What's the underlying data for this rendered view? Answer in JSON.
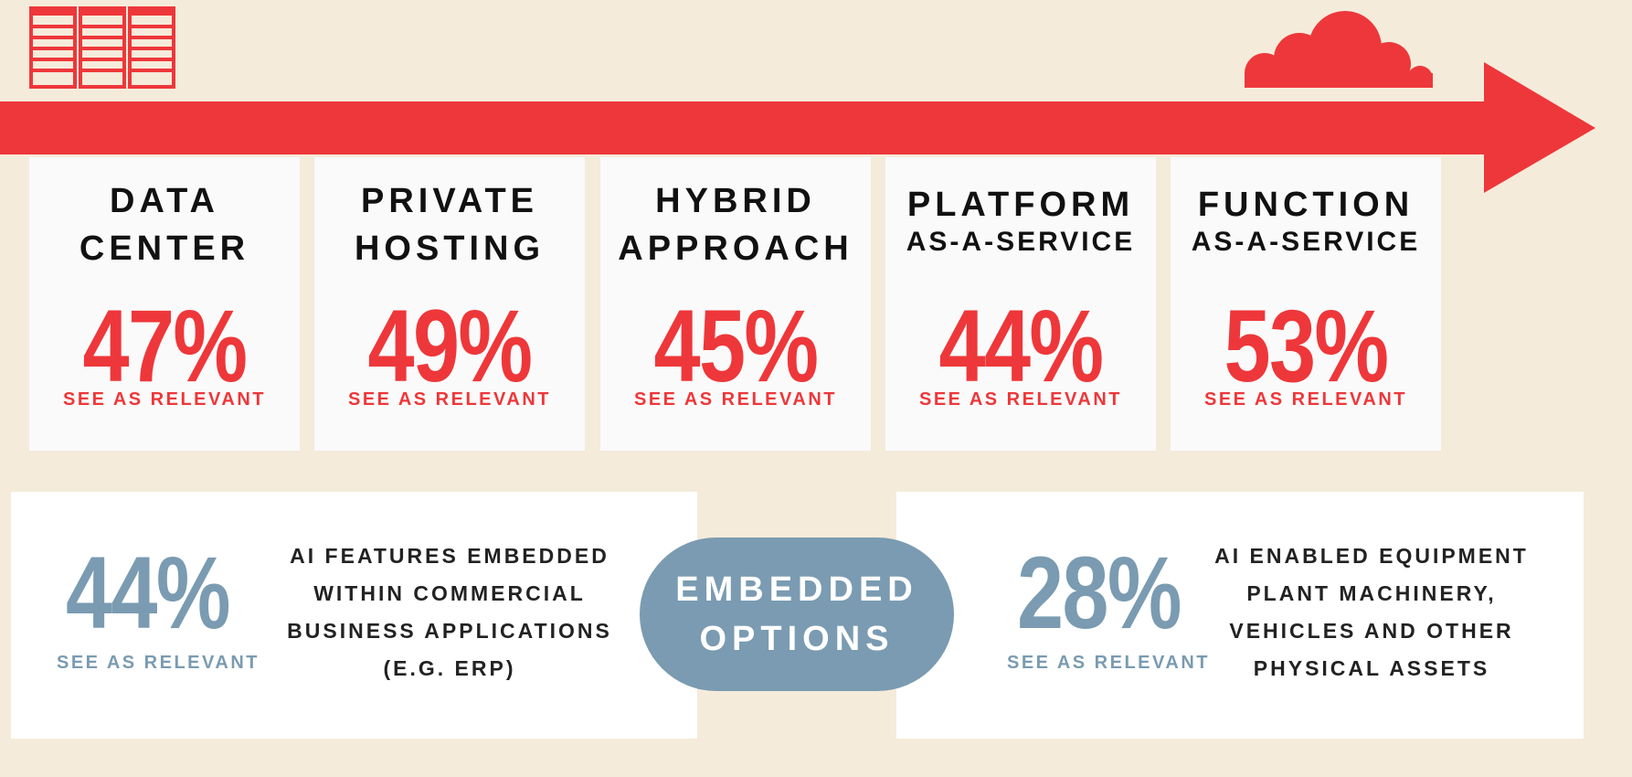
{
  "colors": {
    "background": "#f5ebdb",
    "accent_red": "#ee373a",
    "accent_blue": "#7a9bb1",
    "card_bg": "#fafafa",
    "panel_bg": "#ffffff"
  },
  "icons": {
    "left": "server-rack-icon",
    "right": "cloud-icon",
    "arrow": "right-arrow-banner"
  },
  "cards": [
    {
      "title_line1": "DATA",
      "title_line2": "CENTER",
      "percent": "47%",
      "relevant": "SEE AS RELEVANT"
    },
    {
      "title_line1": "PRIVATE",
      "title_line2": "HOSTING",
      "percent": "49%",
      "relevant": "SEE AS RELEVANT"
    },
    {
      "title_line1": "HYBRID",
      "title_line2": "APPROACH",
      "percent": "45%",
      "relevant": "SEE AS RELEVANT"
    },
    {
      "title_line1": "PLATFORM",
      "title_line2": "AS-A-SERVICE",
      "percent": "44%",
      "relevant": "SEE AS RELEVANT"
    },
    {
      "title_line1": "FUNCTION",
      "title_line2": "AS-A-SERVICE",
      "percent": "53%",
      "relevant": "SEE AS RELEVANT"
    }
  ],
  "embedded": {
    "line1": "EMBEDDED",
    "line2": "OPTIONS"
  },
  "left_panel": {
    "percent": "44%",
    "relevant": "SEE AS RELEVANT",
    "desc": [
      "AI FEATURES EMBEDDED",
      "WITHIN COMMERCIAL",
      "BUSINESS APPLICATIONS",
      "(E.G. ERP)"
    ]
  },
  "right_panel": {
    "percent": "28%",
    "relevant": "SEE AS RELEVANT",
    "desc": [
      "AI ENABLED EQUIPMENT",
      "PLANT MACHINERY,",
      "VEHICLES AND OTHER",
      "PHYSICAL ASSETS"
    ]
  }
}
